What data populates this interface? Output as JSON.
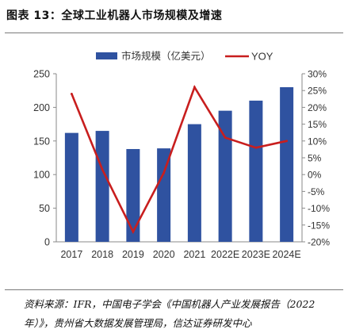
{
  "figure": {
    "title": "图表 13：全球工业机器人市场规模及增速",
    "source": "资料来源：IFR，中国电子学会《中国机器人产业发展报告（2022年）》，贵州省大数据发展管理局，信达证券研发中心"
  },
  "chart_data": {
    "type": "bar+line",
    "categories": [
      "2017",
      "2018",
      "2019",
      "2020",
      "2021",
      "2022E",
      "2023E",
      "2024E"
    ],
    "series": [
      {
        "name": "市场规模（亿美元）",
        "type": "bar",
        "axis": "left",
        "color": "#2f52a0",
        "values": [
          162,
          165,
          138,
          139,
          175,
          195,
          210,
          230
        ]
      },
      {
        "name": "YOY",
        "type": "line",
        "axis": "right",
        "color": "#c81e1e",
        "values": [
          24,
          1.5,
          -17,
          0.5,
          26,
          11,
          8,
          10
        ]
      }
    ],
    "y_left": {
      "min": 0,
      "max": 250,
      "ticks": [
        "0",
        "50",
        "100",
        "150",
        "200",
        "250"
      ]
    },
    "y_right": {
      "min": -20,
      "max": 30,
      "ticks": [
        "-20%",
        "-15%",
        "-10%",
        "-5%",
        "0%",
        "5%",
        "10%",
        "15%",
        "20%",
        "25%",
        "30%"
      ]
    },
    "legend_position": "top",
    "grid": false
  }
}
